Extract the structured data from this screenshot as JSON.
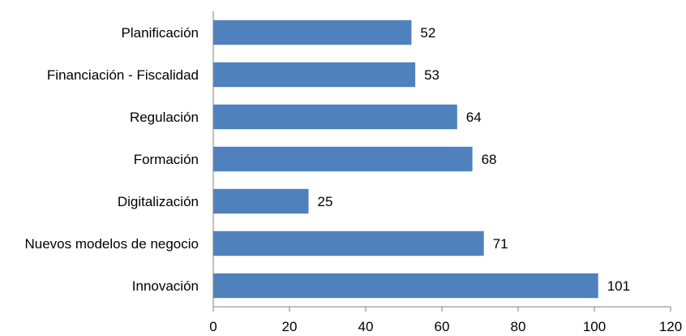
{
  "chart_data": {
    "type": "bar",
    "orientation": "horizontal",
    "title": "",
    "xlabel": "",
    "ylabel": "",
    "categories": [
      "Planificación",
      "Financiación - Fiscalidad",
      "Regulación",
      "Formación",
      "Digitalización",
      "Nuevos modelos de negocio",
      "Innovación"
    ],
    "values": [
      52,
      53,
      64,
      68,
      25,
      71,
      101
    ],
    "xlim": [
      0,
      120
    ],
    "xticks": [
      0,
      20,
      40,
      60,
      80,
      100,
      120
    ],
    "grid": false,
    "legend": "none",
    "bar_color": "#4F81BD"
  }
}
